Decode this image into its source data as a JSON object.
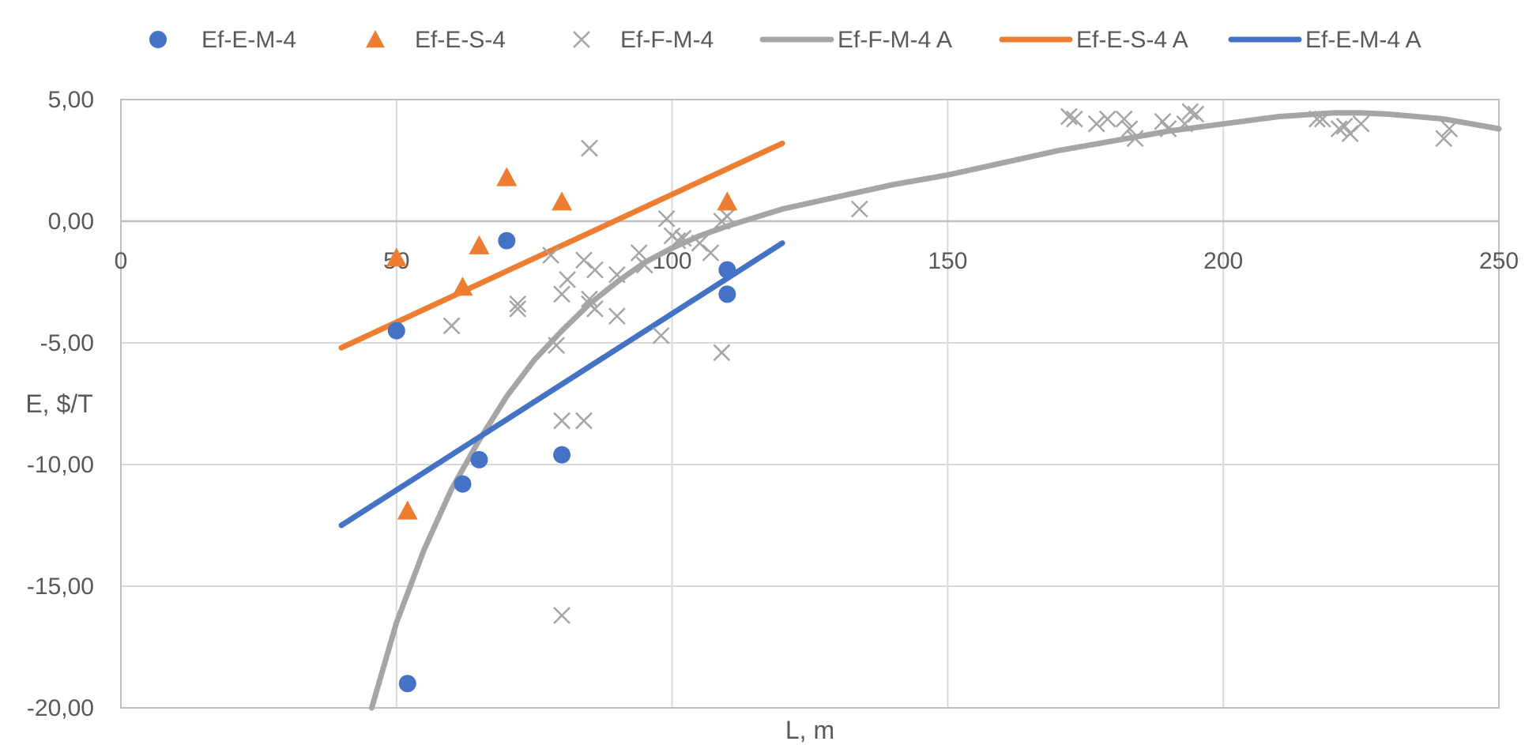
{
  "chart_data": {
    "type": "scatter",
    "xlabel": "L, m",
    "ylabel": "E, $/T",
    "xlim": [
      0,
      250
    ],
    "ylim": [
      -20,
      5
    ],
    "x_ticks": [
      0,
      50,
      100,
      150,
      200,
      250
    ],
    "y_ticks": [
      -20,
      -15,
      -10,
      -5,
      0,
      5
    ],
    "x_tick_labels": [
      "0",
      "50",
      "100",
      "150",
      "200",
      "250"
    ],
    "y_tick_labels": [
      "-20,00",
      "-15,00",
      "-10,00",
      "-5,00",
      "0,00",
      "5,00"
    ],
    "grid": true,
    "legend_position": "top",
    "series": [
      {
        "name": "Ef-E-M-4",
        "kind": "points",
        "marker": "circle",
        "color": "#4472C4",
        "x": [
          50,
          52,
          62,
          65,
          70,
          80,
          110,
          110
        ],
        "y": [
          -4.5,
          -19.0,
          -10.8,
          -9.8,
          -0.8,
          -9.6,
          -2.0,
          -3.0
        ]
      },
      {
        "name": "Ef-E-S-4",
        "kind": "points",
        "marker": "triangle",
        "color": "#ED7D31",
        "x": [
          50,
          52,
          62,
          65,
          70,
          80,
          110
        ],
        "y": [
          -1.5,
          -11.9,
          -2.7,
          -1.0,
          1.8,
          0.8,
          0.8
        ]
      },
      {
        "name": "Ef-F-M-4",
        "kind": "points",
        "marker": "cross",
        "color": "#A5A5A5",
        "x": [
          60,
          72,
          72,
          78,
          79,
          80,
          80,
          80,
          81,
          84,
          84,
          85,
          85,
          85,
          86,
          86,
          90,
          90,
          94,
          95,
          98,
          99,
          100,
          101,
          102,
          105,
          107,
          109,
          109,
          110,
          134,
          172,
          173,
          177,
          179,
          182,
          183,
          184,
          189,
          190,
          193,
          194,
          195,
          217,
          218,
          221,
          222,
          223,
          225,
          240,
          241
        ],
        "y": [
          -4.3,
          -3.4,
          -3.6,
          -1.4,
          -5.1,
          -8.2,
          -16.2,
          -3.0,
          -2.4,
          -8.2,
          -1.6,
          -3.4,
          -3.2,
          3.0,
          -2.0,
          -3.6,
          -2.2,
          -3.9,
          -1.3,
          -1.8,
          -4.7,
          0.1,
          -0.6,
          -0.8,
          -0.7,
          -0.9,
          -1.3,
          -5.4,
          0.0,
          0.2,
          0.5,
          4.3,
          4.2,
          4.0,
          4.2,
          4.2,
          3.8,
          3.4,
          4.1,
          3.8,
          4.0,
          4.5,
          4.4,
          4.2,
          4.2,
          3.8,
          3.9,
          3.6,
          4.0,
          3.4,
          3.8
        ]
      },
      {
        "name": "Ef-F-M-4 A",
        "kind": "line",
        "color": "#A5A5A5",
        "x": [
          45.5,
          50,
          55,
          60,
          65,
          70,
          75,
          80,
          85,
          90,
          95,
          100,
          105,
          110,
          120,
          130,
          140,
          150,
          160,
          170,
          180,
          190,
          200,
          210,
          220,
          225,
          230,
          240,
          250
        ],
        "y": [
          -20.0,
          -16.5,
          -13.5,
          -11.0,
          -9.0,
          -7.2,
          -5.7,
          -4.5,
          -3.4,
          -2.5,
          -1.7,
          -1.1,
          -0.6,
          -0.2,
          0.5,
          1.0,
          1.5,
          1.9,
          2.4,
          2.9,
          3.3,
          3.7,
          4.0,
          4.3,
          4.45,
          4.45,
          4.4,
          4.2,
          3.8
        ]
      },
      {
        "name": "Ef-E-S-4 A",
        "kind": "line",
        "color": "#ED7D31",
        "x": [
          40,
          120
        ],
        "y": [
          -5.2,
          3.2
        ]
      },
      {
        "name": "Ef-E-M-4 A",
        "kind": "line",
        "color": "#4472C4",
        "x": [
          40,
          120
        ],
        "y": [
          -12.5,
          -0.9
        ]
      }
    ]
  }
}
